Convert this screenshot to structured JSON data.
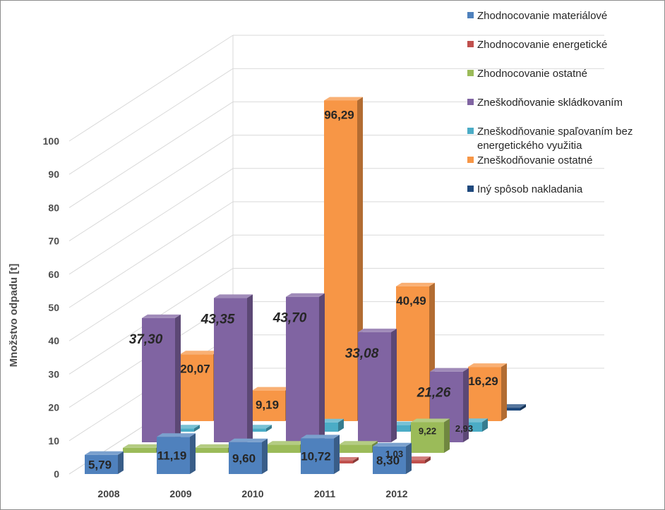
{
  "chart_data": {
    "type": "bar",
    "subtype": "3d-clustered-depth",
    "ylabel": "Množstvo odpadu [t]",
    "ylim": [
      0,
      100
    ],
    "yticks": [
      "0",
      "10",
      "20",
      "30",
      "40",
      "50",
      "60",
      "70",
      "80",
      "90",
      "100"
    ],
    "grid": true,
    "legend_position": "right",
    "categories": [
      "2008",
      "2009",
      "2010",
      "2011",
      "2012"
    ],
    "series": [
      {
        "name": "Zhodnocovanie materiálové",
        "color": "#4F81BD",
        "values": [
          5.79,
          11.19,
          9.6,
          10.72,
          8.3
        ],
        "labels": [
          "5,79",
          "11,19",
          "9,60",
          "10,72",
          "8,30"
        ]
      },
      {
        "name": "Zhodnocovanie energetické",
        "color": "#C0504D",
        "values": [
          0,
          0,
          0,
          0.5,
          1.03
        ],
        "labels": [
          "",
          "",
          "",
          "",
          "1,03"
        ]
      },
      {
        "name": "Zhodnocovanie ostatné",
        "color": "#9BBB59",
        "values": [
          1.5,
          1.5,
          2.5,
          2.5,
          9.22
        ],
        "labels": [
          "",
          "",
          "",
          "",
          "9,22"
        ]
      },
      {
        "name": "Zneškodňovanie skládkovaním",
        "color": "#8064A2",
        "values": [
          37.3,
          43.35,
          43.7,
          33.08,
          21.26
        ],
        "labels": [
          "37,30",
          "43,35",
          "43,70",
          "33,08",
          "21,26"
        ]
      },
      {
        "name": "Zneškodňovanie spaľovaním bez energetického využitia",
        "color": "#4BACC6",
        "values": [
          1.0,
          1.0,
          2.8,
          2.0,
          2.93
        ],
        "labels": [
          "",
          "",
          "",
          "",
          "2,93"
        ]
      },
      {
        "name": "Zneškodňovanie ostatné",
        "color": "#F79646",
        "values": [
          20.07,
          9.19,
          96.29,
          40.49,
          16.29
        ],
        "labels": [
          "20,07",
          "9,19",
          "96,29",
          "40,49",
          "16,29"
        ]
      },
      {
        "name": "Iný spôsob nakladania",
        "color": "#1F497D",
        "values": [
          11.0,
          1.0,
          1.0,
          0.5,
          0.5
        ],
        "labels": [
          "",
          "",
          "",
          "",
          ""
        ]
      }
    ]
  }
}
